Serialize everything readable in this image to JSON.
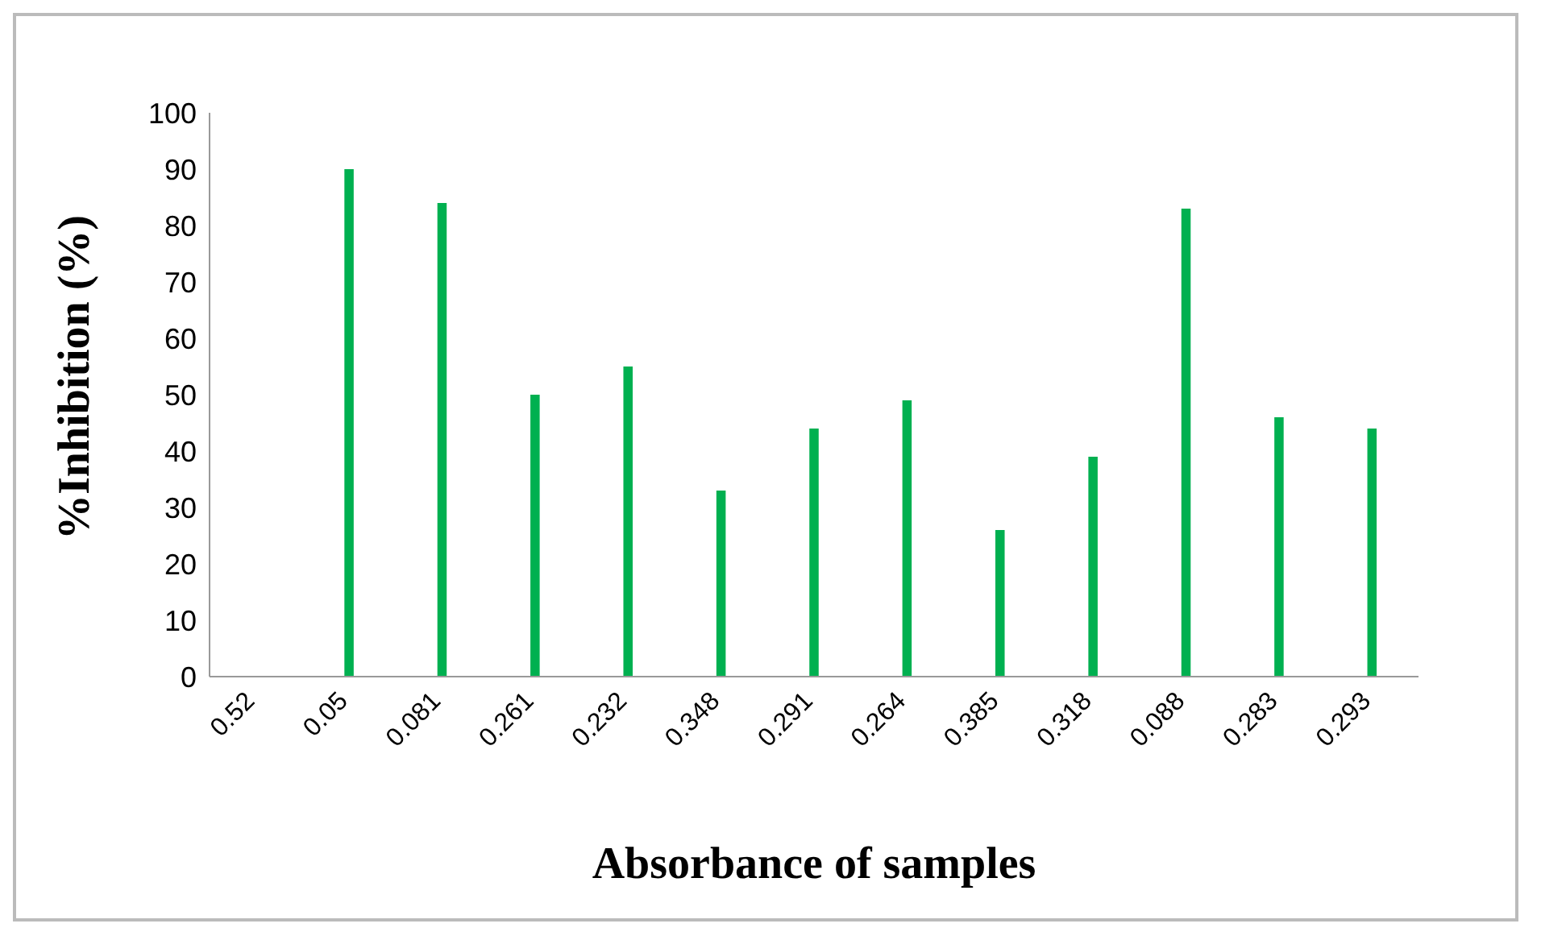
{
  "chart_data": {
    "type": "bar",
    "xlabel": "Absorbance of samples",
    "ylabel": "%Inhibition (%)",
    "categories": [
      "0.52",
      "0.05",
      "0.081",
      "0.261",
      "0.232",
      "0.348",
      "0.291",
      "0.264",
      "0.385",
      "0.318",
      "0.088",
      "0.283",
      "0.293"
    ],
    "values": [
      0,
      90,
      84,
      50,
      55,
      33,
      44,
      49,
      26,
      39,
      83,
      46,
      44
    ],
    "color": "#00b050",
    "ylim": [
      0,
      100
    ],
    "yticks": [
      0,
      10,
      20,
      30,
      40,
      50,
      60,
      70,
      80,
      90,
      100
    ]
  }
}
